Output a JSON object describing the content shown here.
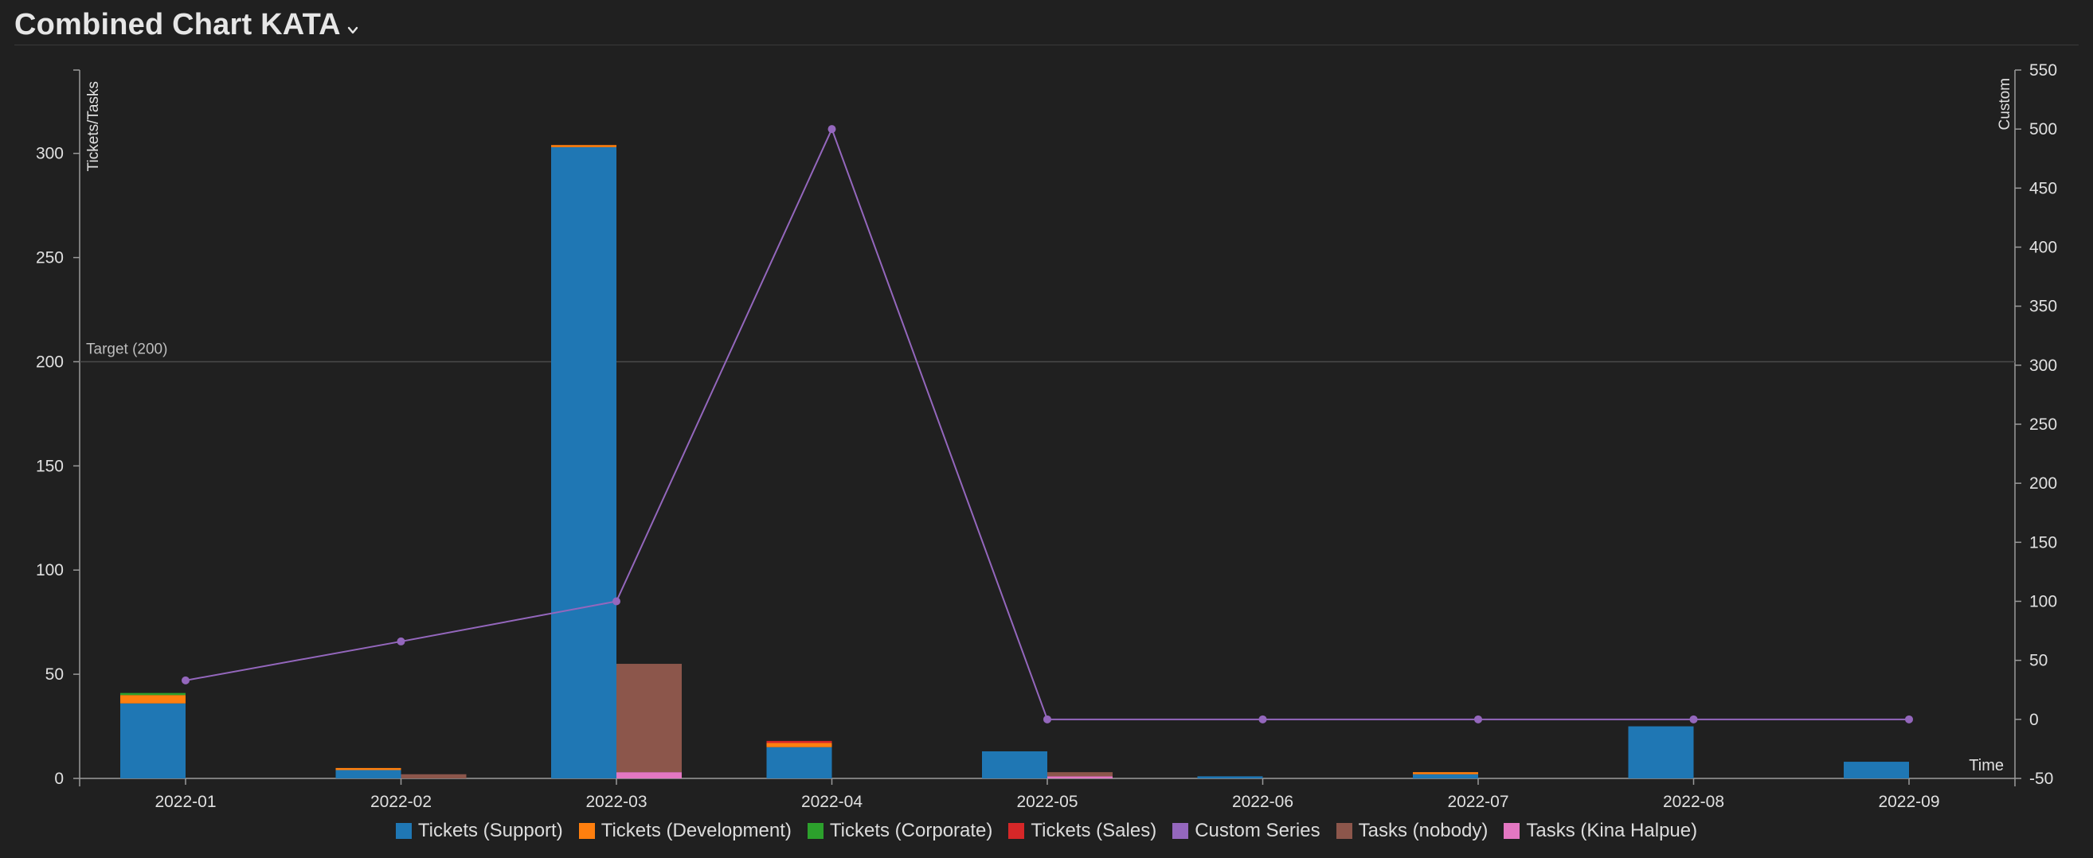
{
  "header": {
    "title": "Combined Chart KATA"
  },
  "chart_data": {
    "type": "bar",
    "categories": [
      "2022-01",
      "2022-02",
      "2022-03",
      "2022-04",
      "2022-05",
      "2022-06",
      "2022-07",
      "2022-08",
      "2022-09"
    ],
    "xlabel": "Time",
    "ylabel": "Tickets/Tasks",
    "y2label": "Custom",
    "ylim": [
      0,
      340
    ],
    "y2lim": [
      -50,
      550
    ],
    "yticks": [
      0,
      50,
      100,
      150,
      200,
      250,
      300
    ],
    "y2ticks": [
      -50,
      0,
      50,
      100,
      150,
      200,
      250,
      300,
      350,
      400,
      450,
      500,
      550
    ],
    "target": {
      "label": "Target (200)",
      "value": 200
    },
    "stacks": [
      {
        "name": "tickets",
        "series": [
          {
            "name": "Tickets (Support)",
            "color": "#1f77b4",
            "values": [
              36,
              4,
              303,
              15,
              13,
              1,
              2,
              25,
              8
            ]
          },
          {
            "name": "Tickets (Development)",
            "color": "#ff7f0e",
            "values": [
              4,
              1,
              1,
              2,
              0,
              0,
              1,
              0,
              0
            ]
          },
          {
            "name": "Tickets (Corporate)",
            "color": "#2ca02c",
            "values": [
              1,
              0,
              0,
              0,
              0,
              0,
              0,
              0,
              0
            ]
          },
          {
            "name": "Tickets (Sales)",
            "color": "#d62728",
            "values": [
              0,
              0,
              0,
              1,
              0,
              0,
              0,
              0,
              0
            ]
          }
        ]
      },
      {
        "name": "tasks",
        "series": [
          {
            "name": "Tasks (Kina Halpue)",
            "color": "#e377c2",
            "values": [
              0,
              0,
              3,
              0,
              1,
              0,
              0,
              0,
              0
            ]
          },
          {
            "name": "Tasks (nobody)",
            "color": "#8c564b",
            "values": [
              0,
              2,
              52,
              0,
              2,
              0,
              0,
              0,
              0
            ]
          }
        ]
      }
    ],
    "line_series": {
      "name": "Custom Series",
      "color": "#9467bd",
      "axis": "right",
      "values": [
        33,
        66,
        100,
        500,
        0,
        0,
        0,
        0,
        0
      ]
    },
    "legend": [
      {
        "name": "Tickets (Support)",
        "color": "#1f77b4"
      },
      {
        "name": "Tickets (Development)",
        "color": "#ff7f0e"
      },
      {
        "name": "Tickets (Corporate)",
        "color": "#2ca02c"
      },
      {
        "name": "Tickets (Sales)",
        "color": "#d62728"
      },
      {
        "name": "Custom Series",
        "color": "#9467bd"
      },
      {
        "name": "Tasks (nobody)",
        "color": "#8c564b"
      },
      {
        "name": "Tasks (Kina Halpue)",
        "color": "#e377c2"
      }
    ],
    "legend_position": "bottom",
    "grid": false
  }
}
